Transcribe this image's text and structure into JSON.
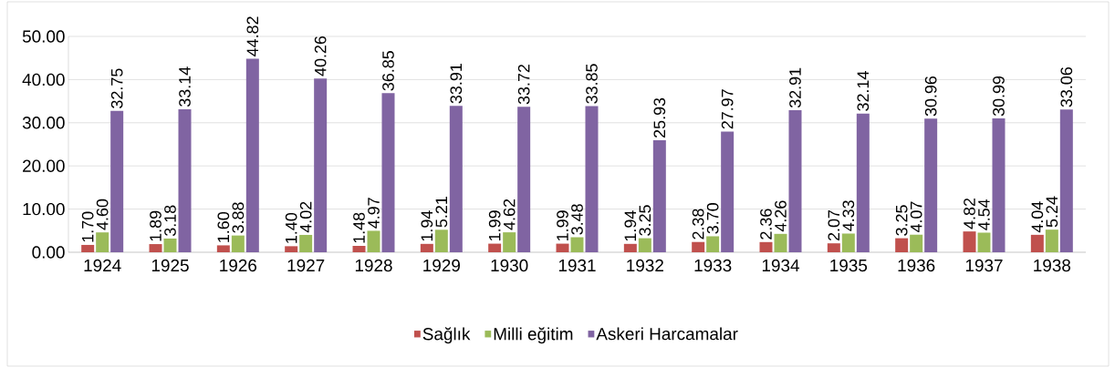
{
  "chart_data": {
    "type": "bar",
    "categories": [
      "1924",
      "1925",
      "1926",
      "1927",
      "1928",
      "1929",
      "1930",
      "1931",
      "1932",
      "1933",
      "1934",
      "1935",
      "1936",
      "1937",
      "1938"
    ],
    "series": [
      {
        "name": "Sağlık",
        "color": "#c0504d",
        "values": [
          1.7,
          1.89,
          1.6,
          1.4,
          1.48,
          1.94,
          1.99,
          1.99,
          1.94,
          2.38,
          2.36,
          2.07,
          3.25,
          4.82,
          4.04
        ],
        "value_labels": [
          "1.70",
          "1.89",
          "1.60",
          "1.40",
          "1.48",
          "1.94",
          "1.99",
          "1.99",
          "1.94",
          "2.38",
          "2.36",
          "2.07",
          "3.25",
          "4.82",
          "4.04"
        ]
      },
      {
        "name": "Milli eğitim",
        "color": "#9bbb59",
        "values": [
          4.6,
          3.18,
          3.88,
          4.02,
          4.97,
          5.21,
          4.62,
          3.48,
          3.25,
          3.7,
          4.26,
          4.33,
          4.07,
          4.54,
          5.24
        ],
        "value_labels": [
          "4.60",
          "3.18",
          "3.88",
          "4.02",
          "4.97",
          "5.21",
          "4.62",
          "3.48",
          "3.25",
          "3.70",
          "4.26",
          "4.33",
          "4.07",
          "4.54",
          "5.24"
        ]
      },
      {
        "name": "Askeri Harcamalar",
        "color": "#8064a2",
        "values": [
          32.75,
          33.14,
          44.82,
          40.26,
          36.85,
          33.91,
          33.72,
          33.85,
          25.93,
          27.97,
          32.91,
          32.14,
          30.96,
          30.99,
          33.06
        ],
        "value_labels": [
          "32.75",
          "33.14",
          "44.82",
          "40.26",
          "36.85",
          "33.91",
          "33.72",
          "33.85",
          "25.93",
          "27.97",
          "32.91",
          "32.14",
          "30.96",
          "30.99",
          "33.06"
        ]
      }
    ],
    "ylim": [
      0,
      50
    ],
    "yticks": [
      {
        "value": 0,
        "label": "0.00"
      },
      {
        "value": 10,
        "label": "10.00"
      },
      {
        "value": 20,
        "label": "20.00"
      },
      {
        "value": 30,
        "label": "30.00"
      },
      {
        "value": 40,
        "label": "40.00"
      },
      {
        "value": 50,
        "label": "50.00"
      }
    ],
    "grid": "y",
    "legend": "bottom"
  }
}
